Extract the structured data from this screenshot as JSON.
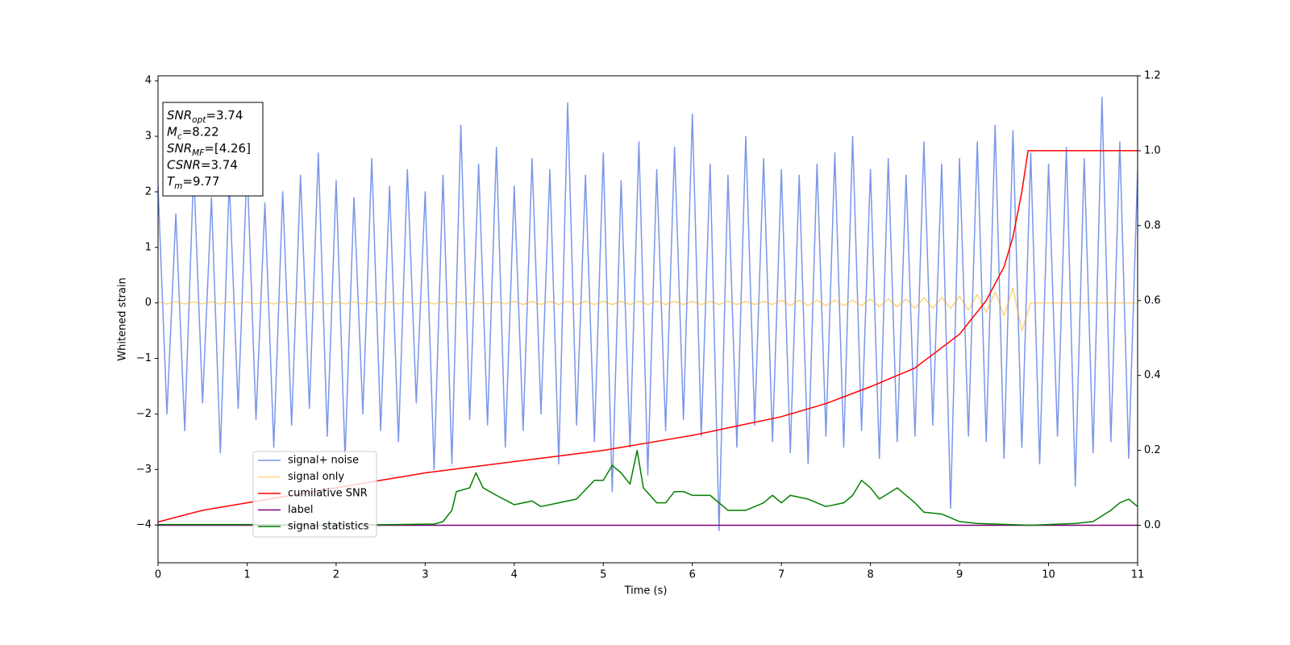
{
  "chart_data": {
    "type": "line",
    "xlabel": "Time (s)",
    "ylabel": "Whitened strain",
    "xlim": [
      0,
      11
    ],
    "ylim": [
      -4.68,
      4.09
    ],
    "y2lim": [
      -0.1,
      1.2
    ],
    "xticks": [
      0,
      1,
      2,
      3,
      4,
      5,
      6,
      7,
      8,
      9,
      10,
      11
    ],
    "yticks": [
      {
        "value": -4,
        "label": "−4"
      },
      {
        "value": -3,
        "label": "−3"
      },
      {
        "value": -2,
        "label": "−2"
      },
      {
        "value": -1,
        "label": "−1"
      },
      0,
      1,
      2,
      3,
      4
    ],
    "y2ticks": [
      {
        "value": 0,
        "label": "0.0"
      },
      0.2,
      0.4,
      0.6,
      0.8,
      {
        "value": 1,
        "label": "1.0"
      },
      1.2
    ],
    "annotation": [
      {
        "symbol": "SNR",
        "sub": "opt",
        "text": "=3.74"
      },
      {
        "symbol": "M",
        "sub": "c",
        "text": "=8.22"
      },
      {
        "symbol": "SNR",
        "sub": "MF",
        "text": "=[4.26]"
      },
      {
        "symbol": "CSNR",
        "text": "=3.74"
      },
      {
        "symbol": "T",
        "sub": "m",
        "text": "=9.77"
      }
    ],
    "x": [
      0,
      0.1,
      0.2,
      0.3,
      0.4,
      0.5,
      0.6,
      0.7,
      0.8,
      0.9,
      1,
      1.1,
      1.2,
      1.3,
      1.4,
      1.5,
      1.6,
      1.7,
      1.8,
      1.9,
      2,
      2.1,
      2.2,
      2.3,
      2.4,
      2.5,
      2.6,
      2.7,
      2.8,
      2.9,
      3,
      3.1,
      3.2,
      3.3,
      3.4,
      3.5,
      3.6,
      3.7,
      3.8,
      3.9,
      4,
      4.1,
      4.2,
      4.3,
      4.4,
      4.5,
      4.6,
      4.7,
      4.8,
      4.9,
      5,
      5.1,
      5.2,
      5.3,
      5.4,
      5.5,
      5.6,
      5.7,
      5.8,
      5.9,
      6,
      6.1,
      6.2,
      6.3,
      6.4,
      6.5,
      6.6,
      6.7,
      6.8,
      6.9,
      7,
      7.1,
      7.2,
      7.3,
      7.4,
      7.5,
      7.6,
      7.7,
      7.8,
      7.9,
      8,
      8.1,
      8.2,
      8.3,
      8.4,
      8.5,
      8.6,
      8.7,
      8.8,
      8.9,
      9,
      9.1,
      9.2,
      9.3,
      9.4,
      9.5,
      9.6,
      9.7,
      9.8,
      9.9,
      10,
      10.1,
      10.2,
      10.3,
      10.4,
      10.5,
      10.6,
      10.7,
      10.8,
      10.9,
      11
    ],
    "series": [
      {
        "name": "signal+ noise",
        "color": "royalblue",
        "opacity": 0.7,
        "values": [
          2.1,
          -2.0,
          1.6,
          -2.3,
          2.4,
          -1.8,
          1.9,
          -2.7,
          2.2,
          -1.9,
          2.5,
          -2.1,
          1.8,
          -2.6,
          2.0,
          -2.2,
          2.3,
          -1.9,
          2.7,
          -2.4,
          2.2,
          -2.8,
          1.9,
          -2.0,
          2.6,
          -2.3,
          2.1,
          -2.5,
          2.4,
          -1.8,
          2.0,
          -3.0,
          2.3,
          -2.9,
          3.2,
          -2.1,
          2.5,
          -2.2,
          2.8,
          -2.6,
          2.1,
          -2.3,
          2.6,
          -2.0,
          2.4,
          -2.9,
          3.6,
          -2.2,
          2.3,
          -2.5,
          2.7,
          -3.4,
          2.2,
          -2.6,
          2.9,
          -3.1,
          2.4,
          -2.3,
          2.8,
          -2.1,
          3.4,
          -2.4,
          2.5,
          -4.1,
          2.3,
          -2.6,
          3.0,
          -2.2,
          2.6,
          -2.5,
          2.4,
          -2.7,
          2.3,
          -2.9,
          2.5,
          -2.4,
          2.7,
          -2.6,
          3.0,
          -2.3,
          2.4,
          -2.8,
          2.6,
          -2.5,
          2.3,
          -2.4,
          2.9,
          -2.2,
          2.5,
          -3.7,
          2.6,
          -2.4,
          2.9,
          -2.5,
          3.2,
          -2.8,
          3.1,
          -2.6,
          2.7,
          -2.9,
          2.5,
          -2.4,
          2.8,
          -3.3,
          2.6,
          -2.7,
          3.7,
          -2.5,
          2.9,
          -2.8,
          2.4
        ]
      },
      {
        "name": "signal only",
        "color": "orange",
        "opacity": 0.5,
        "values": [
          0.02,
          -0.02,
          0.02,
          -0.02,
          0.02,
          -0.02,
          0.02,
          -0.02,
          0.02,
          -0.02,
          0.02,
          -0.02,
          0.02,
          -0.02,
          0.02,
          -0.02,
          0.02,
          -0.02,
          0.02,
          -0.02,
          0.02,
          -0.02,
          0.02,
          -0.02,
          0.02,
          -0.02,
          0.02,
          -0.02,
          0.02,
          -0.02,
          0.02,
          -0.02,
          0.02,
          -0.02,
          0.02,
          -0.02,
          0.02,
          -0.02,
          0.02,
          -0.02,
          0.03,
          -0.03,
          0.03,
          -0.03,
          0.03,
          -0.03,
          0.03,
          -0.03,
          0.03,
          -0.03,
          0.03,
          -0.03,
          0.03,
          -0.03,
          0.03,
          -0.03,
          0.03,
          -0.03,
          0.03,
          -0.03,
          0.03,
          -0.03,
          0.03,
          -0.03,
          0.03,
          -0.03,
          0.03,
          -0.03,
          0.03,
          -0.03,
          0.05,
          -0.05,
          0.05,
          -0.05,
          0.05,
          -0.05,
          0.05,
          -0.05,
          0.05,
          -0.05,
          0.07,
          -0.07,
          0.07,
          -0.07,
          0.07,
          -0.1,
          0.1,
          -0.1,
          0.1,
          -0.1,
          0.12,
          -0.13,
          0.15,
          -0.17,
          0.2,
          -0.23,
          0.27,
          -0.5,
          0,
          0,
          0,
          0,
          0,
          0,
          0,
          0,
          0,
          0,
          0,
          0,
          0
        ]
      },
      {
        "name": "cumilative SNR",
        "color": "red",
        "axis": "y2",
        "x": [
          0,
          0.5,
          1,
          1.5,
          2,
          2.5,
          3,
          3.5,
          4,
          4.5,
          5,
          5.5,
          6,
          6.5,
          7,
          7.5,
          8,
          8.5,
          9,
          9.3,
          9.5,
          9.6,
          9.7,
          9.77,
          11
        ],
        "values": [
          0.009,
          0.04,
          0.06,
          0.08,
          0.1,
          0.12,
          0.14,
          0.155,
          0.17,
          0.185,
          0.2,
          0.22,
          0.24,
          0.265,
          0.29,
          0.325,
          0.37,
          0.42,
          0.51,
          0.6,
          0.69,
          0.77,
          0.89,
          1.0,
          1.0
        ]
      },
      {
        "name": "label",
        "color": "purple",
        "axis": "y2",
        "x": [
          0,
          11
        ],
        "values": [
          0,
          0
        ]
      },
      {
        "name": "signal statistics",
        "color": "green",
        "axis": "y2",
        "x": [
          0,
          1,
          2,
          3,
          3.1,
          3.2,
          3.3,
          3.35,
          3.5,
          3.57,
          3.65,
          3.8,
          4.0,
          4.2,
          4.3,
          4.5,
          4.7,
          4.9,
          5.0,
          5.1,
          5.2,
          5.3,
          5.38,
          5.45,
          5.6,
          5.7,
          5.8,
          5.9,
          6.0,
          6.2,
          6.4,
          6.6,
          6.8,
          6.9,
          7.0,
          7.1,
          7.3,
          7.5,
          7.7,
          7.8,
          7.9,
          8.0,
          8.1,
          8.3,
          8.5,
          8.6,
          8.8,
          9.0,
          9.2,
          9.8,
          10.3,
          10.5,
          10.7,
          10.8,
          10.9,
          11.0
        ],
        "values": [
          0.002,
          0.002,
          0.0,
          0.003,
          0.003,
          0.01,
          0.04,
          0.09,
          0.1,
          0.14,
          0.1,
          0.08,
          0.055,
          0.065,
          0.05,
          0.06,
          0.07,
          0.12,
          0.12,
          0.16,
          0.14,
          0.11,
          0.2,
          0.1,
          0.06,
          0.06,
          0.09,
          0.09,
          0.08,
          0.08,
          0.04,
          0.04,
          0.06,
          0.08,
          0.06,
          0.08,
          0.07,
          0.05,
          0.06,
          0.08,
          0.12,
          0.1,
          0.07,
          0.1,
          0.06,
          0.035,
          0.03,
          0.01,
          0.005,
          0.0,
          0.005,
          0.01,
          0.04,
          0.06,
          0.07,
          0.05
        ]
      }
    ]
  }
}
